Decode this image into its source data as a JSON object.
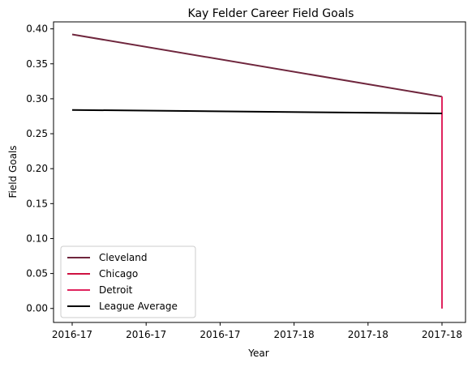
{
  "chart_data": {
    "type": "line",
    "title": "Kay Felder Career Field Goals",
    "xlabel": "Year",
    "ylabel": "Field Goals",
    "x_tick_labels": [
      "2016-17",
      "2016-17",
      "2016-17",
      "2017-18",
      "2017-18",
      "2017-18"
    ],
    "x_range": [
      0,
      1
    ],
    "ylim": [
      -0.02,
      0.41
    ],
    "y_ticks": [
      0.0,
      0.05,
      0.1,
      0.15,
      0.2,
      0.25,
      0.3,
      0.35,
      0.4
    ],
    "y_tick_labels": [
      "0.00",
      "0.05",
      "0.10",
      "0.15",
      "0.20",
      "0.25",
      "0.30",
      "0.35",
      "0.40"
    ],
    "grid": false,
    "legend_position": "lower-left",
    "series": [
      {
        "name": "Cleveland",
        "color": "#6f263d",
        "points": [
          [
            0,
            0.392
          ],
          [
            1,
            0.303
          ]
        ]
      },
      {
        "name": "Chicago",
        "color": "#ce1141",
        "points": [
          [
            1,
            0.303
          ],
          [
            1,
            0.0
          ]
        ]
      },
      {
        "name": "Detroit",
        "color": "#e0245e",
        "points": [
          [
            1,
            0.303
          ],
          [
            1,
            0.0
          ]
        ]
      },
      {
        "name": "League Average",
        "color": "#000000",
        "points": [
          [
            0,
            0.284
          ],
          [
            1,
            0.279
          ]
        ]
      }
    ]
  }
}
